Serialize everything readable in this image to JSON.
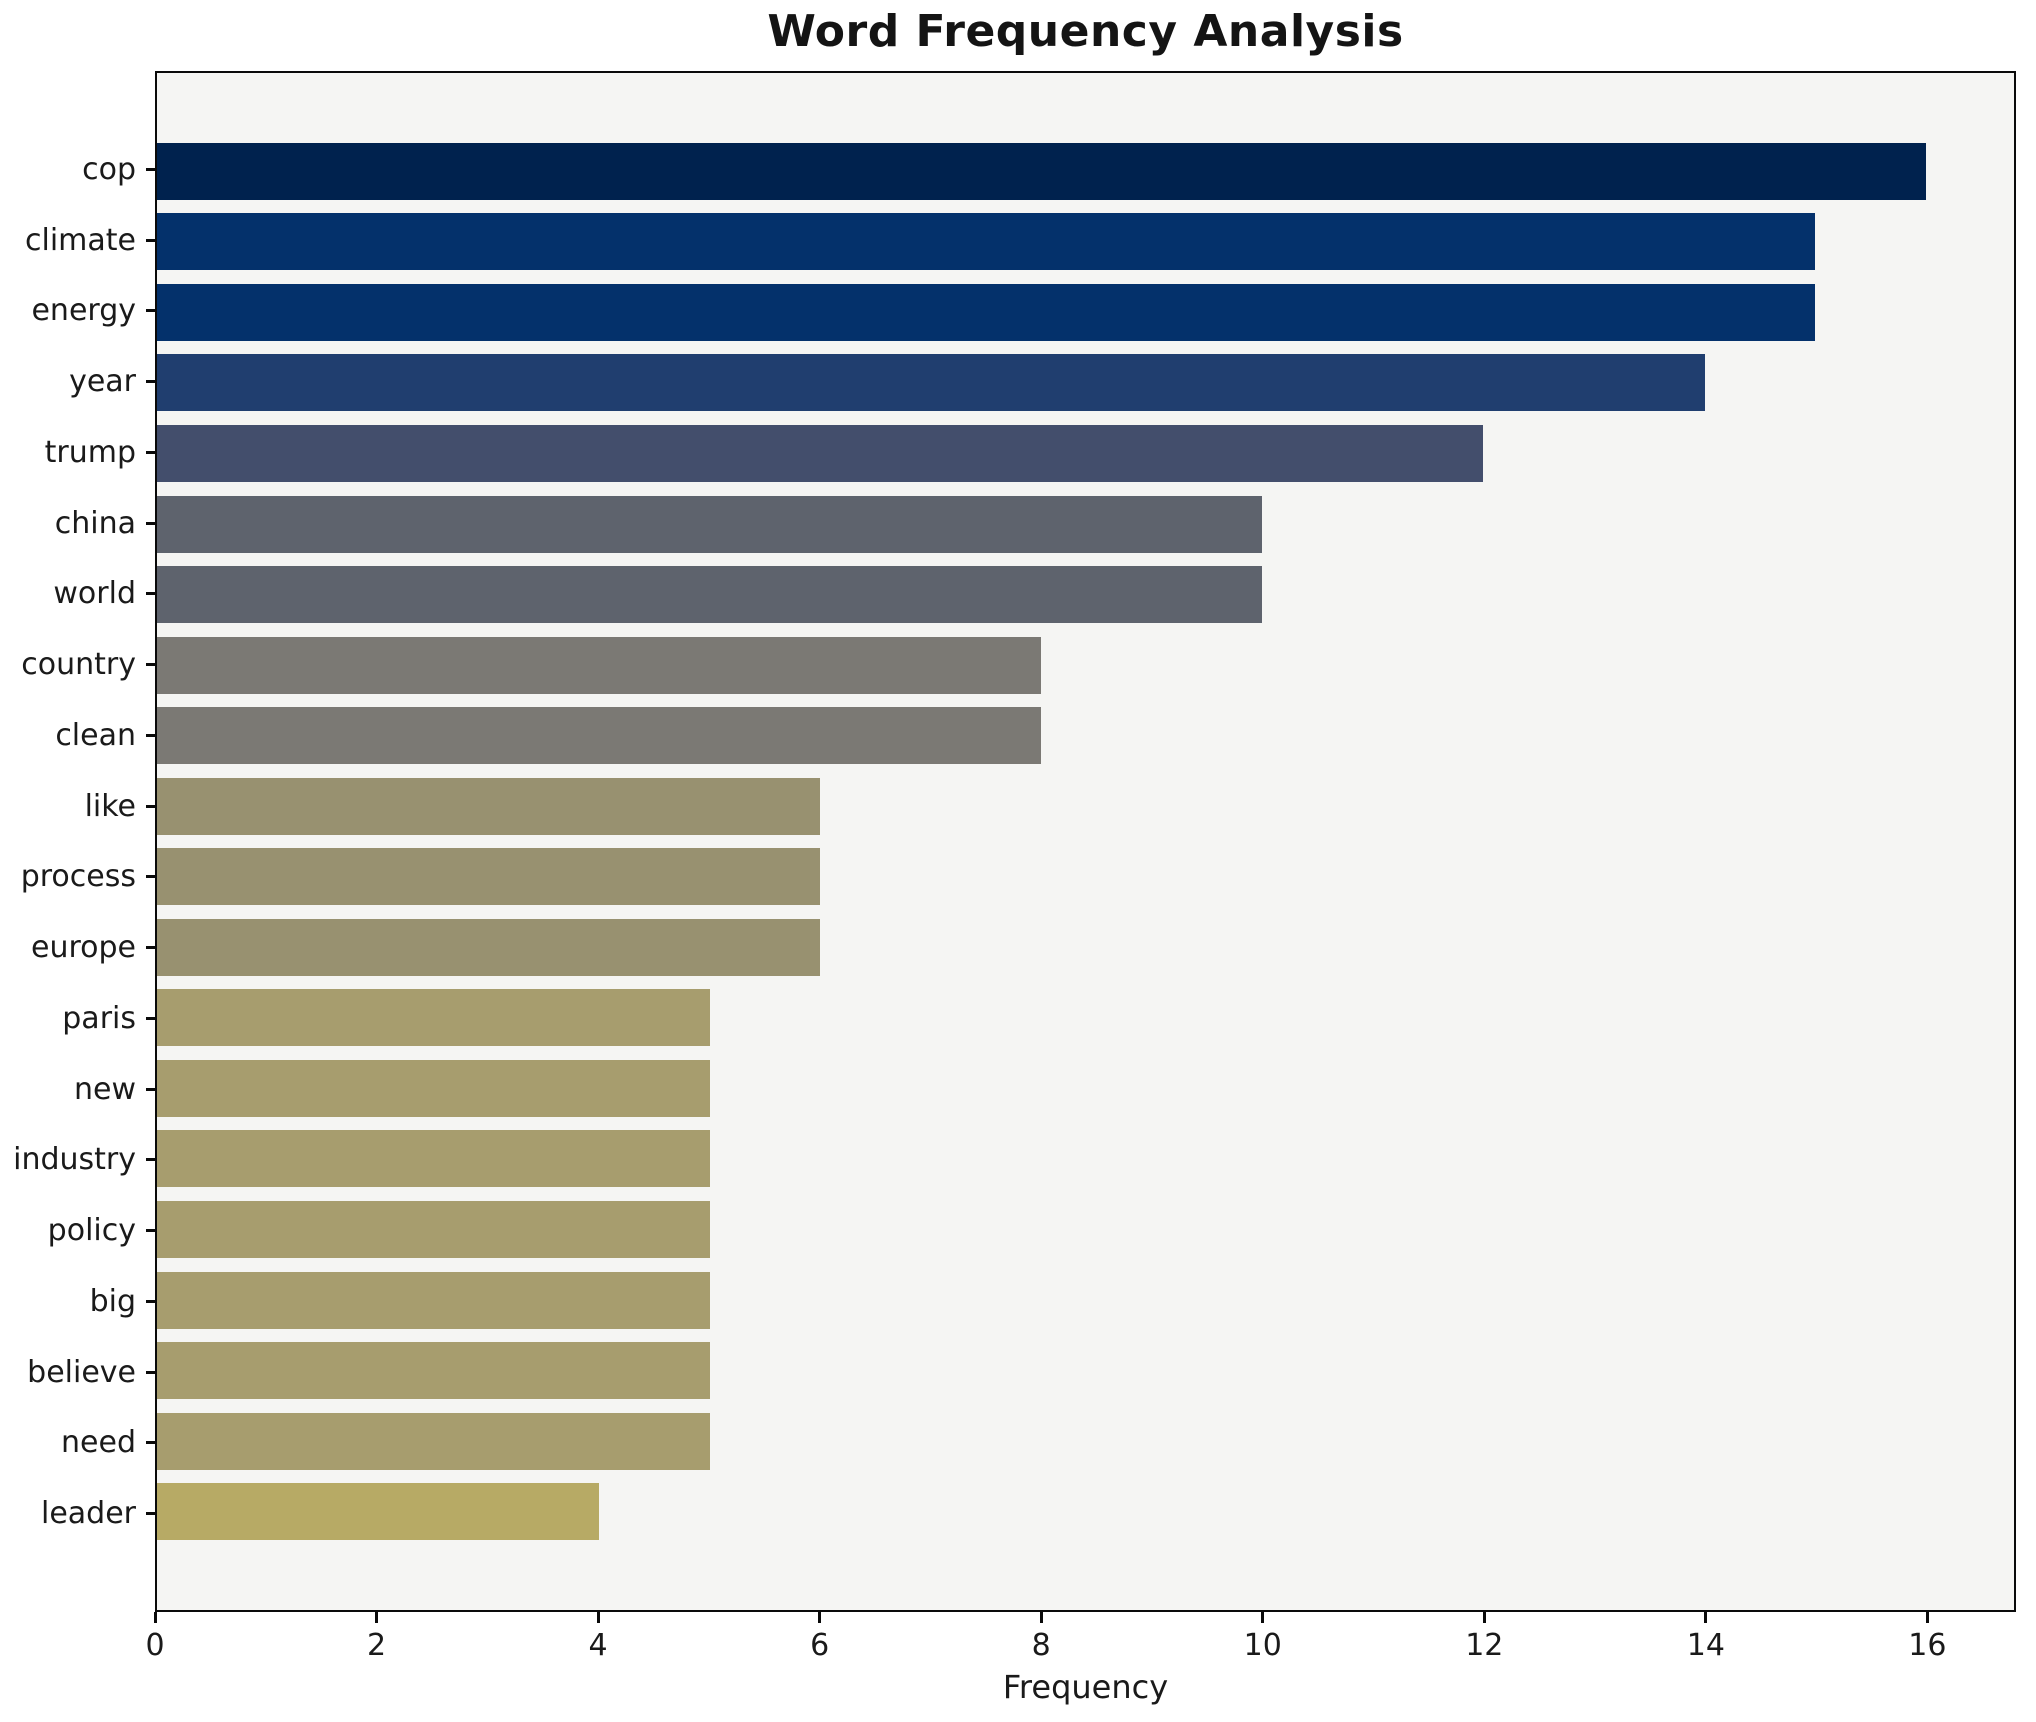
{
  "chart_data": {
    "type": "bar",
    "orientation": "horizontal",
    "title": "Word Frequency Analysis",
    "xlabel": "Frequency",
    "ylabel": "",
    "categories": [
      "cop",
      "climate",
      "energy",
      "year",
      "trump",
      "china",
      "world",
      "country",
      "clean",
      "like",
      "process",
      "europe",
      "paris",
      "new",
      "industry",
      "policy",
      "big",
      "believe",
      "need",
      "leader"
    ],
    "values": [
      16,
      15,
      15,
      14,
      12,
      10,
      10,
      8,
      8,
      6,
      6,
      6,
      5,
      5,
      5,
      5,
      5,
      5,
      5,
      4
    ],
    "bar_colors": [
      "#00224e",
      "#04316b",
      "#04316b",
      "#203e6f",
      "#434e6c",
      "#5e636d",
      "#5e636d",
      "#7b7974",
      "#7b7974",
      "#989170",
      "#989170",
      "#989170",
      "#a79d6e",
      "#a79d6e",
      "#a79d6e",
      "#a79d6e",
      "#a79d6e",
      "#a79d6e",
      "#a79d6e",
      "#b7aa65"
    ],
    "colormap": "cividis",
    "x_ticks": [
      0,
      2,
      4,
      6,
      8,
      10,
      12,
      14,
      16
    ],
    "xlim": [
      0,
      16.8
    ],
    "grid": false,
    "legend": null,
    "colors": {
      "figure_background": "#ffffff",
      "plot_background": "#f5f5f3",
      "spine": "#0a0a0a",
      "text": "#1a1a1a"
    }
  }
}
